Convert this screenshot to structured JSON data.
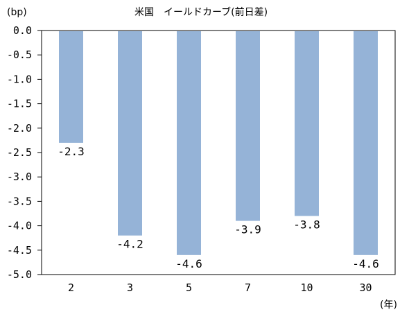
{
  "chart_data": {
    "type": "bar",
    "title": "米国　イールドカーブ(前日差)",
    "ylabel": "(bp)",
    "xlabel": "(年)",
    "categories": [
      "2",
      "3",
      "5",
      "7",
      "10",
      "30"
    ],
    "values": [
      -2.3,
      -4.2,
      -4.6,
      -3.9,
      -3.8,
      -4.6
    ],
    "data_labels": [
      "-2.3",
      "-4.2",
      "-4.6",
      "-3.9",
      "-3.8",
      "-4.6"
    ],
    "ylim": [
      -5.0,
      0.0
    ],
    "yticks": [
      "0.0",
      "-0.5",
      "-1.0",
      "-1.5",
      "-2.0",
      "-2.5",
      "-3.0",
      "-3.5",
      "-4.0",
      "-4.5",
      "-5.0"
    ],
    "grid": false,
    "legend": "none",
    "bar_color": "#95b3d7"
  }
}
